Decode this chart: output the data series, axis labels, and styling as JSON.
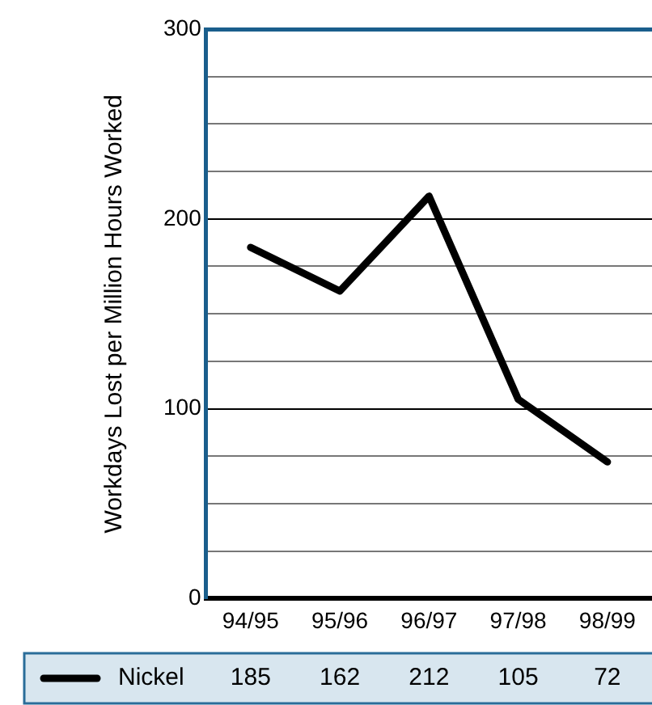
{
  "chart_data": {
    "type": "line",
    "ylabel": "Workdays Lost per Million Hours Worked",
    "categories": [
      "94/95",
      "95/96",
      "96/97",
      "97/98",
      "98/99"
    ],
    "series": [
      {
        "name": "Nickel",
        "color": "#000000",
        "values": [
          185,
          162,
          212,
          105,
          72
        ]
      }
    ],
    "ylim": [
      0,
      300
    ],
    "yticks": [
      0,
      {
        "value": 25,
        "label": null
      },
      {
        "value": 50,
        "label": null
      },
      {
        "value": 75,
        "label": null
      },
      100,
      {
        "value": 125,
        "label": null
      },
      {
        "value": 150,
        "label": null
      },
      {
        "value": 175,
        "label": null
      },
      200,
      {
        "value": 225,
        "label": null
      },
      {
        "value": 250,
        "label": null
      },
      {
        "value": 275,
        "label": null
      },
      300
    ],
    "grid": "y",
    "legend": "bottom",
    "data_labels": true,
    "marker": "none",
    "line_style": "solid"
  }
}
